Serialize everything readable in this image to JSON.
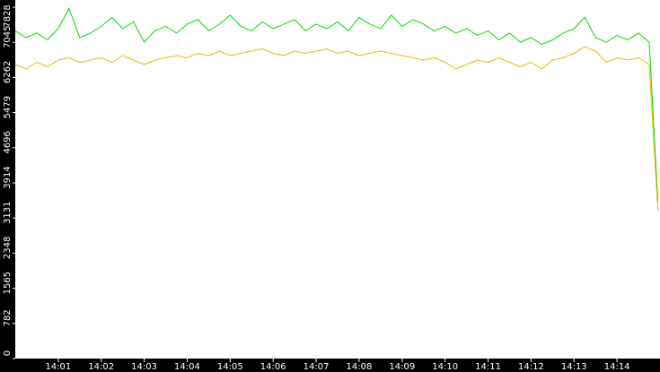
{
  "chart_data": {
    "type": "line",
    "x": [
      0,
      0.25,
      0.5,
      0.75,
      1,
      1.25,
      1.5,
      1.75,
      2,
      2.25,
      2.5,
      2.75,
      3,
      3.25,
      3.5,
      3.75,
      4,
      4.25,
      4.5,
      4.75,
      5,
      5.25,
      5.5,
      5.75,
      6,
      6.25,
      6.5,
      6.75,
      7,
      7.25,
      7.5,
      7.75,
      8,
      8.25,
      8.5,
      8.75,
      9,
      9.25,
      9.5,
      9.75,
      10,
      10.25,
      10.5,
      10.75,
      11,
      11.25,
      11.5,
      11.75,
      12,
      12.25,
      12.5,
      12.75,
      13,
      13.25,
      13.5,
      13.75,
      14,
      14.25,
      14.5,
      14.75,
      14.95
    ],
    "series": [
      {
        "color": "#00dd00",
        "values": [
          7300,
          7150,
          7250,
          7100,
          7350,
          7800,
          7150,
          7250,
          7400,
          7600,
          7350,
          7500,
          7050,
          7300,
          7400,
          7250,
          7450,
          7550,
          7300,
          7450,
          7650,
          7400,
          7300,
          7500,
          7350,
          7450,
          7550,
          7300,
          7450,
          7350,
          7500,
          7300,
          7600,
          7450,
          7350,
          7650,
          7400,
          7550,
          7450,
          7300,
          7400,
          7250,
          7350,
          7200,
          7300,
          7100,
          7250,
          7050,
          7150,
          7000,
          7100,
          7250,
          7350,
          7600,
          7150,
          7050,
          7200,
          7100,
          7250,
          7050,
          3500
        ]
      },
      {
        "color": "#f0b400",
        "values": [
          6550,
          6450,
          6600,
          6500,
          6650,
          6700,
          6600,
          6650,
          6700,
          6600,
          6750,
          6650,
          6550,
          6650,
          6700,
          6750,
          6700,
          6800,
          6750,
          6850,
          6750,
          6800,
          6850,
          6900,
          6800,
          6750,
          6850,
          6800,
          6850,
          6900,
          6800,
          6850,
          6750,
          6800,
          6850,
          6800,
          6750,
          6700,
          6650,
          6700,
          6600,
          6450,
          6550,
          6650,
          6600,
          6700,
          6600,
          6500,
          6600,
          6450,
          6650,
          6700,
          6800,
          6950,
          6850,
          6600,
          6700,
          6650,
          6700,
          6550,
          3300
        ]
      }
    ],
    "xlim": [
      0,
      15
    ],
    "ylim": [
      0,
      7828
    ],
    "yticks": [
      0,
      782,
      1565,
      2348,
      3131,
      3914,
      4696,
      5479,
      6262,
      7045,
      7828
    ],
    "xticks": [
      {
        "value": 1,
        "label": "14:01"
      },
      {
        "value": 2,
        "label": "14:02"
      },
      {
        "value": 3,
        "label": "14:03"
      },
      {
        "value": 4,
        "label": "14:04"
      },
      {
        "value": 5,
        "label": "14:05"
      },
      {
        "value": 6,
        "label": "14:06"
      },
      {
        "value": 7,
        "label": "14:07"
      },
      {
        "value": 8,
        "label": "14:08"
      },
      {
        "value": 9,
        "label": "14:09"
      },
      {
        "value": 10,
        "label": "14:10"
      },
      {
        "value": 11,
        "label": "14:11"
      },
      {
        "value": 12,
        "label": "14:12"
      },
      {
        "value": 13,
        "label": "14:13"
      },
      {
        "value": 14,
        "label": "14:14"
      }
    ]
  }
}
